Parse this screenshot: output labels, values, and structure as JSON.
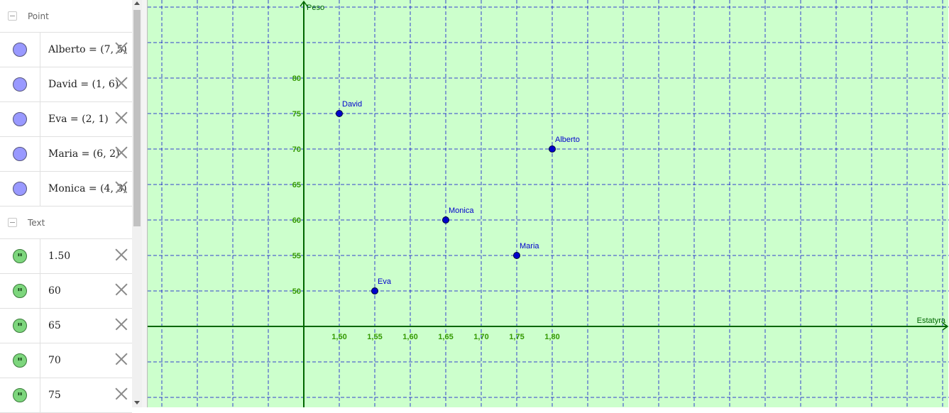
{
  "algebra": {
    "groups": {
      "point": "Point",
      "text": "Text"
    },
    "points": [
      {
        "label": "Alberto = (7, 5)"
      },
      {
        "label": "David = (1, 6)"
      },
      {
        "label": "Eva = (2, 1)"
      },
      {
        "label": "Maria = (6, 2)"
      },
      {
        "label": "Monica = (4, 3)"
      }
    ],
    "texts": [
      {
        "label": "1.50"
      },
      {
        "label": "60"
      },
      {
        "label": "65"
      },
      {
        "label": "70"
      },
      {
        "label": "75"
      }
    ]
  },
  "graphics": {
    "background": "#ccffcc",
    "axis_color": "#006600",
    "grid_color": "#0000cc",
    "point_color": "#0000cc",
    "label_color": "#0000cc",
    "tick_color": "#339900",
    "x_axis_label": "Estatyra",
    "y_axis_label": "Peso",
    "x_tick_labels": [
      "1,50",
      "1,55",
      "1,60",
      "1,65",
      "1,70",
      "1,75",
      "1,80"
    ],
    "y_tick_labels": [
      "80",
      "75",
      "70",
      "65",
      "60",
      "55",
      "50"
    ],
    "points": [
      {
        "name": "David",
        "x": 1,
        "y": 6
      },
      {
        "name": "Alberto",
        "x": 7,
        "y": 5
      },
      {
        "name": "Monica",
        "x": 4,
        "y": 3
      },
      {
        "name": "Maria",
        "x": 6,
        "y": 2
      },
      {
        "name": "Eva",
        "x": 2,
        "y": 1
      }
    ]
  }
}
